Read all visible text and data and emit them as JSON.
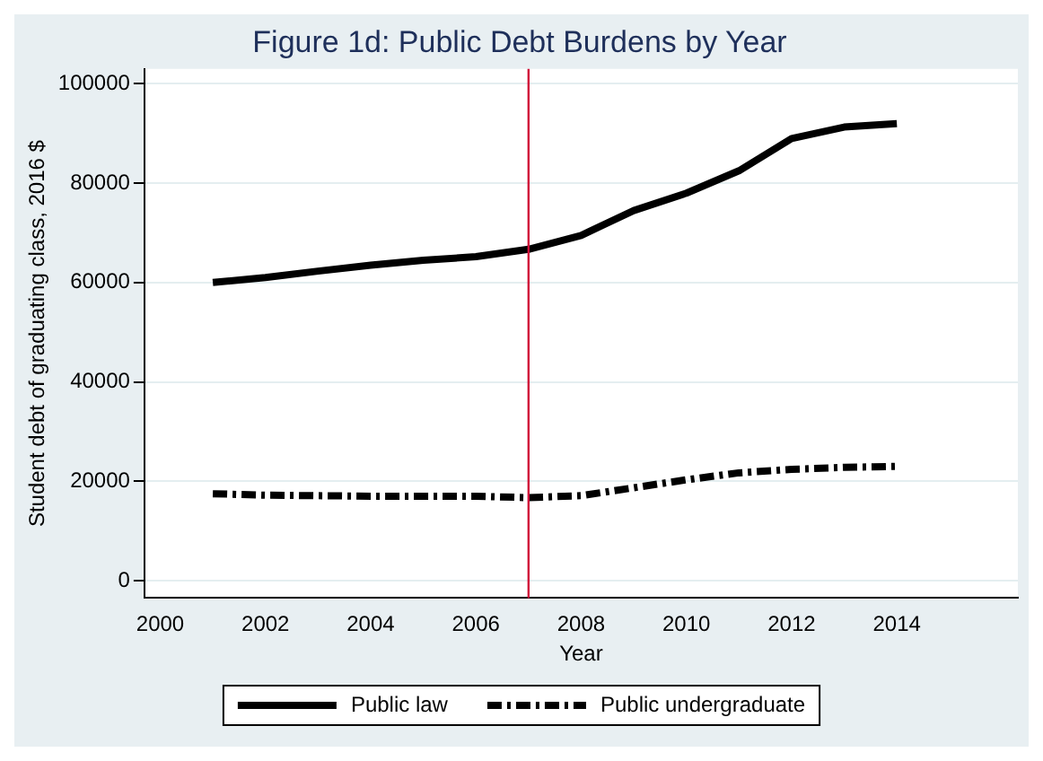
{
  "chart_data": {
    "type": "line",
    "title": "Figure 1d: Public Debt Burdens by Year",
    "xlabel": "Year",
    "ylabel": "Student debt of graduating class, 2016 $",
    "x": [
      2001,
      2002,
      2003,
      2004,
      2005,
      2006,
      2007,
      2008,
      2009,
      2010,
      2011,
      2012,
      2013,
      2014
    ],
    "series": [
      {
        "name": "Public law",
        "color": "#000000",
        "line_style": "solid",
        "values": [
          60000,
          61000,
          62300,
          63500,
          64500,
          65200,
          66700,
          69500,
          74500,
          78000,
          82500,
          89000,
          91300,
          92000
        ]
      },
      {
        "name": "Public undergraduate",
        "color": "#000000",
        "line_style": "dashdot",
        "values": [
          17500,
          17200,
          17100,
          17000,
          17000,
          17000,
          16700,
          17100,
          18700,
          20300,
          21700,
          22400,
          22800,
          23000
        ]
      }
    ],
    "xlim": [
      1999.7,
      2016.3
    ],
    "xticks": [
      2000,
      2002,
      2004,
      2006,
      2008,
      2010,
      2012,
      2014
    ],
    "ylim": [
      -3500,
      103000
    ],
    "yticks": [
      0,
      20000,
      40000,
      60000,
      80000,
      100000
    ],
    "ref_lines": [
      {
        "axis": "x",
        "value": 2007,
        "color": "#d0103a"
      }
    ],
    "grid": "y",
    "legend": "bottom",
    "marker": "none"
  }
}
